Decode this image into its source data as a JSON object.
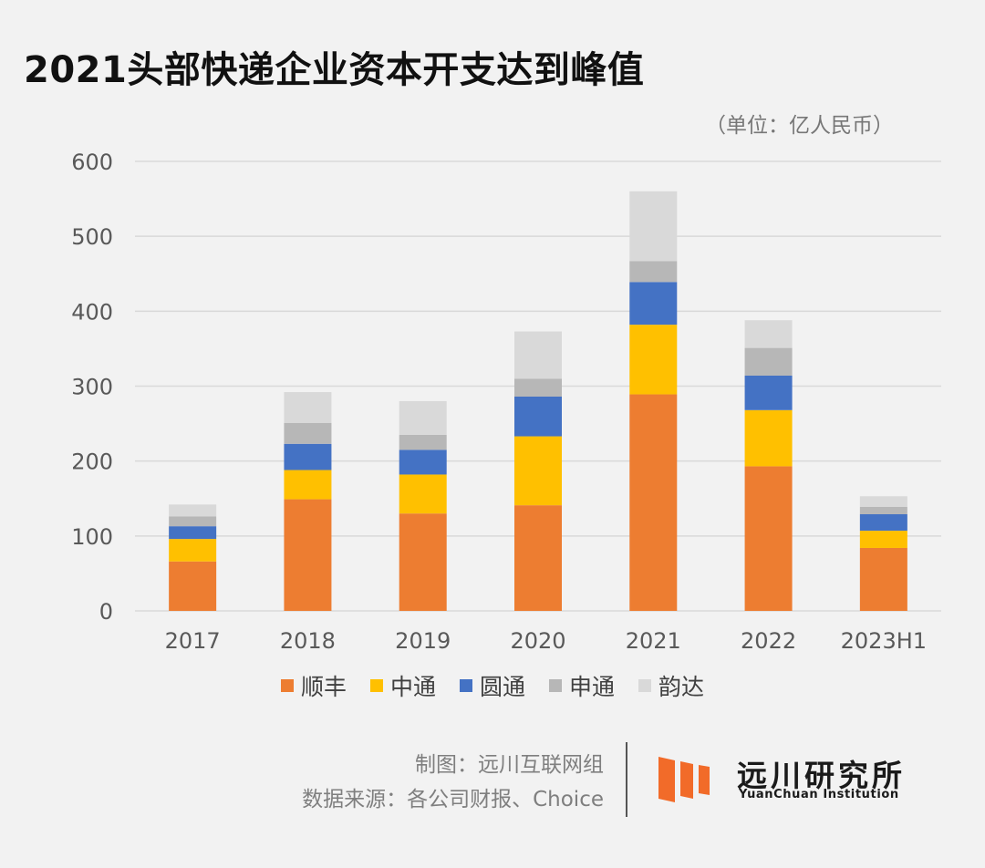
{
  "title": "2021头部快递企业资本开支达到峰值",
  "unit_note": "（单位：亿人民币）",
  "chart_data": {
    "type": "bar",
    "stacked": true,
    "categories": [
      "2017",
      "2018",
      "2019",
      "2020",
      "2021",
      "2022",
      "2023H1"
    ],
    "series": [
      {
        "name": "顺丰",
        "color": "#ed7d31",
        "values": [
          66,
          149,
          130,
          141,
          289,
          193,
          84
        ]
      },
      {
        "name": "中通",
        "color": "#ffc000",
        "values": [
          30,
          39,
          52,
          92,
          93,
          75,
          23
        ]
      },
      {
        "name": "圆通",
        "color": "#4472c4",
        "values": [
          17,
          35,
          33,
          53,
          57,
          46,
          22
        ]
      },
      {
        "name": "申通",
        "color": "#b7b7b7",
        "values": [
          13,
          28,
          20,
          24,
          28,
          37,
          10
        ]
      },
      {
        "name": "韵达",
        "color": "#d9d9d9",
        "values": [
          16,
          41,
          45,
          63,
          93,
          37,
          14
        ]
      }
    ],
    "yticks": [
      "0",
      "100",
      "200",
      "300",
      "400",
      "500",
      "600"
    ],
    "ylim": [
      0,
      600
    ],
    "xlabel": "",
    "ylabel": "",
    "grid": true,
    "legend_position": "bottom"
  },
  "footer": {
    "credit": "制图：远川互联网组",
    "source": "数据来源：各公司财报、Choice"
  },
  "logo": {
    "name_cn": "远川研究所",
    "name_en": "YuanChuan Institution",
    "color": "#f26b29"
  }
}
